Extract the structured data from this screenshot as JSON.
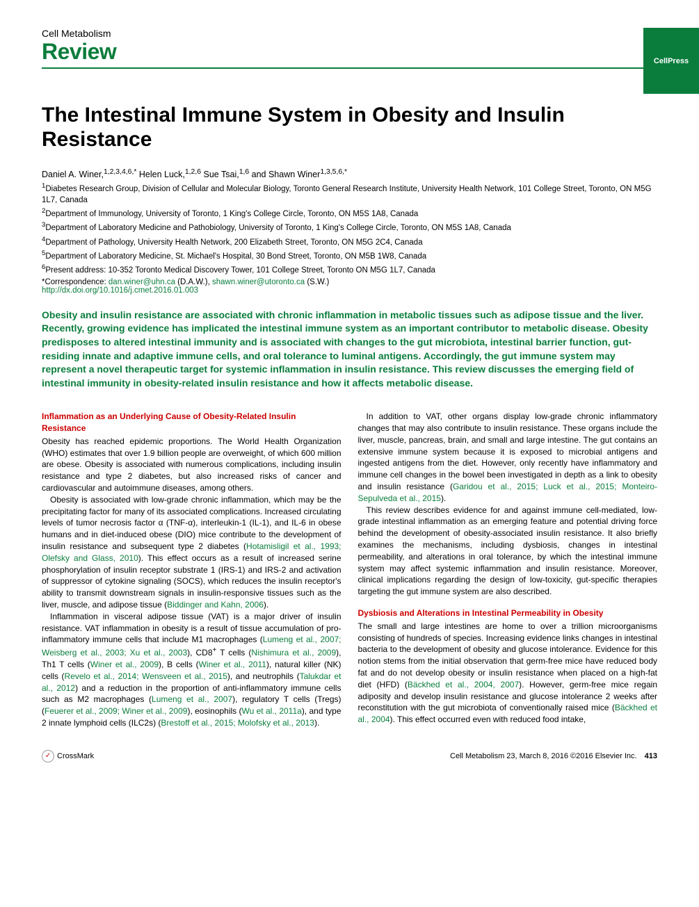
{
  "publisher_badge": "CellPress",
  "journal": "Cell Metabolism",
  "article_type": "Review",
  "title": "The Intestinal Immune System in Obesity and Insulin Resistance",
  "authors_html": "Daniel A. Winer,<sup>1,2,3,4,6,*</sup> Helen Luck,<sup>1,2,6</sup> Sue Tsai,<sup>1,6</sup> and Shawn Winer<sup>1,3,5,6,*</sup>",
  "affiliations": [
    "<sup>1</sup>Diabetes Research Group, Division of Cellular and Molecular Biology, Toronto General Research Institute, University Health Network, 101 College Street, Toronto, ON M5G 1L7, Canada",
    "<sup>2</sup>Department of Immunology, University of Toronto, 1 King's College Circle, Toronto, ON M5S 1A8, Canada",
    "<sup>3</sup>Department of Laboratory Medicine and Pathobiology, University of Toronto, 1 King's College Circle, Toronto, ON M5S 1A8, Canada",
    "<sup>4</sup>Department of Pathology, University Health Network, 200 Elizabeth Street, Toronto, ON M5G 2C4, Canada",
    "<sup>5</sup>Department of Laboratory Medicine, St. Michael's Hospital, 30 Bond Street, Toronto, ON M5B 1W8, Canada",
    "<sup>6</sup>Present address: 10-352 Toronto Medical Discovery Tower, 101 College Street, Toronto ON M5G 1L7, Canada"
  ],
  "correspondence_prefix": "*Correspondence: ",
  "email1": "dan.winer@uhn.ca",
  "email1_suffix": " (D.A.W.), ",
  "email2": "shawn.winer@utoronto.ca",
  "email2_suffix": " (S.W.)",
  "doi": "http://dx.doi.org/10.1016/j.cmet.2016.01.003",
  "abstract": "Obesity and insulin resistance are associated with chronic inflammation in metabolic tissues such as adipose tissue and the liver. Recently, growing evidence has implicated the intestinal immune system as an important contributor to metabolic disease. Obesity predisposes to altered intestinal immunity and is associated with changes to the gut microbiota, intestinal barrier function, gut-residing innate and adaptive immune cells, and oral tolerance to luminal antigens. Accordingly, the gut immune system may represent a novel therapeutic target for systemic inflammation in insulin resistance. This review discusses the emerging field of intestinal immunity in obesity-related insulin resistance and how it affects metabolic disease.",
  "section1_heading": "Inflammation as an Underlying Cause of Obesity-Related Insulin Resistance",
  "col1_p1": "Obesity has reached epidemic proportions. The World Health Organization (WHO) estimates that over 1.9 billion people are overweight, of which 600 million are obese. Obesity is associated with numerous complications, including insulin resistance and type 2 diabetes, but also increased risks of cancer and cardiovascular and autoimmune diseases, among others.",
  "col1_p2": "Obesity is associated with low-grade chronic inflammation, which may be the precipitating factor for many of its associated complications. Increased circulating levels of tumor necrosis factor α (TNF-α), interleukin-1 (IL-1), and IL-6 in obese humans and in diet-induced obese (DIO) mice contribute to the development of insulin resistance and subsequent type 2 diabetes (<span class=\"inline-link\">Hotamisligil et al., 1993; Olefsky and Glass, 2010</span>). This effect occurs as a result of increased serine phosphorylation of insulin receptor substrate 1 (IRS-1) and IRS-2 and activation of suppressor of cytokine signaling (SOCS), which reduces the insulin receptor's ability to transmit downstream signals in insulin-responsive tissues such as the liver, muscle, and adipose tissue (<span class=\"inline-link\">Biddinger and Kahn, 2006</span>).",
  "col1_p3": "Inflammation in visceral adipose tissue (VAT) is a major driver of insulin resistance. VAT inflammation in obesity is a result of tissue accumulation of pro-inflammatory immune cells that include M1 macrophages (<span class=\"inline-link\">Lumeng et al., 2007; Weisberg et al., 2003; Xu et al., 2003</span>), CD8<sup>+</sup> T cells (<span class=\"inline-link\">Nishimura et al., 2009</span>), Th1 T cells (<span class=\"inline-link\">Winer et al., 2009</span>), B cells (<span class=\"inline-link\">Winer et al., 2011</span>), natural killer (NK) cells (<span class=\"inline-link\">Revelo et al., 2014; Wensveen et al., 2015</span>), and neutrophils (<span class=\"inline-link\">Talukdar et al., 2012</span>) and a reduction in the proportion of anti-inflammatory immune cells such as M2 macrophages (<span class=\"inline-link\">Lumeng et al., 2007</span>), regulatory T cells (Tregs) (<span class=\"inline-link\">Feuerer et al., 2009; Winer et al., 2009</span>), eosinophils (<span class=\"inline-link\">Wu et al., 2011a</span>), and type 2 innate lymphoid cells (ILC2s) (<span class=\"inline-link\">Brestoff et al., 2015; Molofsky et al., 2013</span>).",
  "col2_p1": "In addition to VAT, other organs display low-grade chronic inflammatory changes that may also contribute to insulin resistance. These organs include the liver, muscle, pancreas, brain, and small and large intestine. The gut contains an extensive immune system because it is exposed to microbial antigens and ingested antigens from the diet. However, only recently have inflammatory and immune cell changes in the bowel been investigated in depth as a link to obesity and insulin resistance (<span class=\"inline-link\">Garidou et al., 2015; Luck et al., 2015; Monteiro-Sepulveda et al., 2015</span>).",
  "col2_p2": "This review describes evidence for and against immune cell-mediated, low-grade intestinal inflammation as an emerging feature and potential driving force behind the development of obesity-associated insulin resistance. It also briefly examines the mechanisms, including dysbiosis, changes in intestinal permeability, and alterations in oral tolerance, by which the intestinal immune system may affect systemic inflammation and insulin resistance. Moreover, clinical implications regarding the design of low-toxicity, gut-specific therapies targeting the gut immune system are also described.",
  "section2_heading": "Dysbiosis and Alterations in Intestinal Permeability in Obesity",
  "col2_p3": "The small and large intestines are home to over a trillion microorganisms consisting of hundreds of species. Increasing evidence links changes in intestinal bacteria to the development of obesity and glucose intolerance. Evidence for this notion stems from the initial observation that germ-free mice have reduced body fat and do not develop obesity or insulin resistance when placed on a high-fat diet (HFD) (<span class=\"inline-link\">Bäckhed et al., 2004, 2007</span>). However, germ-free mice regain adiposity and develop insulin resistance and glucose intolerance 2 weeks after reconstitution with the gut microbiota of conventionally raised mice (<span class=\"inline-link\">Bäckhed et al., 2004</span>). This effect occurred even with reduced food intake,",
  "crossmark_label": "CrossMark",
  "footer_citation": "Cell Metabolism 23, March 8, 2016 ©2016 Elsevier Inc.",
  "page_number": "413"
}
